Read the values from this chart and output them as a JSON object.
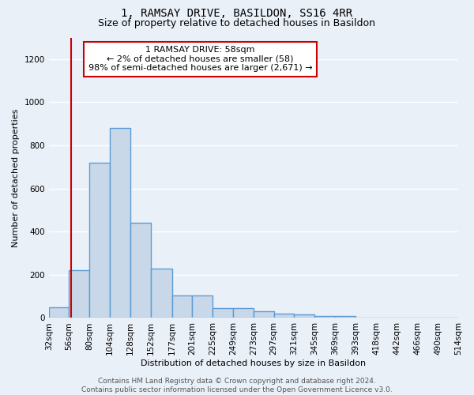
{
  "title": "1, RAMSAY DRIVE, BASILDON, SS16 4RR",
  "subtitle": "Size of property relative to detached houses in Basildon",
  "xlabel": "Distribution of detached houses by size in Basildon",
  "ylabel": "Number of detached properties",
  "bin_edges": [
    32,
    56,
    80,
    104,
    128,
    152,
    177,
    201,
    225,
    249,
    273,
    297,
    321,
    345,
    369,
    393,
    418,
    442,
    466,
    490,
    514
  ],
  "bar_heights": [
    50,
    220,
    720,
    880,
    440,
    230,
    105,
    105,
    45,
    45,
    30,
    20,
    15,
    10,
    10,
    0,
    0,
    0,
    0,
    0
  ],
  "bar_color": "#c8d8e8",
  "bar_edge_color": "#5b9bd5",
  "bar_edge_width": 1.0,
  "red_line_x": 58,
  "red_line_color": "#cc0000",
  "ylim": [
    0,
    1300
  ],
  "yticks": [
    0,
    200,
    400,
    600,
    800,
    1000,
    1200
  ],
  "annotation_text": "1 RAMSAY DRIVE: 58sqm\n← 2% of detached houses are smaller (58)\n98% of semi-detached houses are larger (2,671) →",
  "annotation_box_color": "#ffffff",
  "annotation_box_edge_color": "#cc0000",
  "footer_text": "Contains HM Land Registry data © Crown copyright and database right 2024.\nContains public sector information licensed under the Open Government Licence v3.0.",
  "bg_color": "#eaf0f8",
  "grid_color": "#ffffff",
  "title_fontsize": 10,
  "subtitle_fontsize": 9,
  "axis_label_fontsize": 8,
  "tick_fontsize": 7.5,
  "annotation_fontsize": 8,
  "footer_fontsize": 6.5
}
